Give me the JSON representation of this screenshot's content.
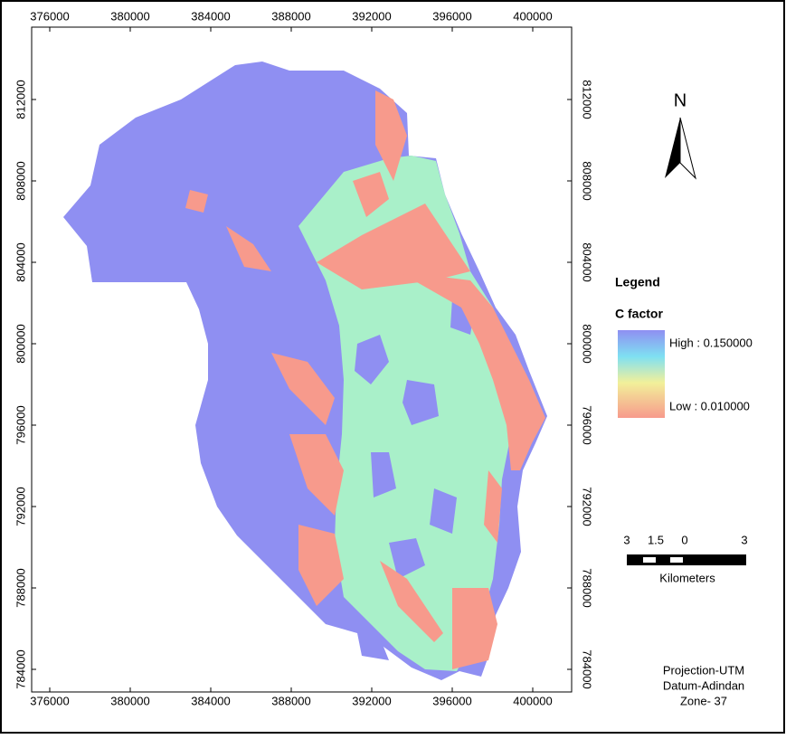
{
  "map": {
    "x_ticks": [
      376000,
      380000,
      384000,
      388000,
      392000,
      396000,
      400000
    ],
    "y_ticks": [
      784000,
      788000,
      792000,
      796000,
      800000,
      804000,
      808000,
      812000
    ],
    "north": "N",
    "legend": {
      "title": "Legend",
      "field": "C factor",
      "high": "High : 0.150000",
      "low": "Low : 0.010000"
    },
    "scale_bar": {
      "labels": [
        "3",
        "1.5",
        "0",
        "3"
      ],
      "unit": "Kilometers"
    },
    "notes": [
      "Projection-UTM",
      "Datum-Adindan",
      "Zone- 37"
    ]
  }
}
